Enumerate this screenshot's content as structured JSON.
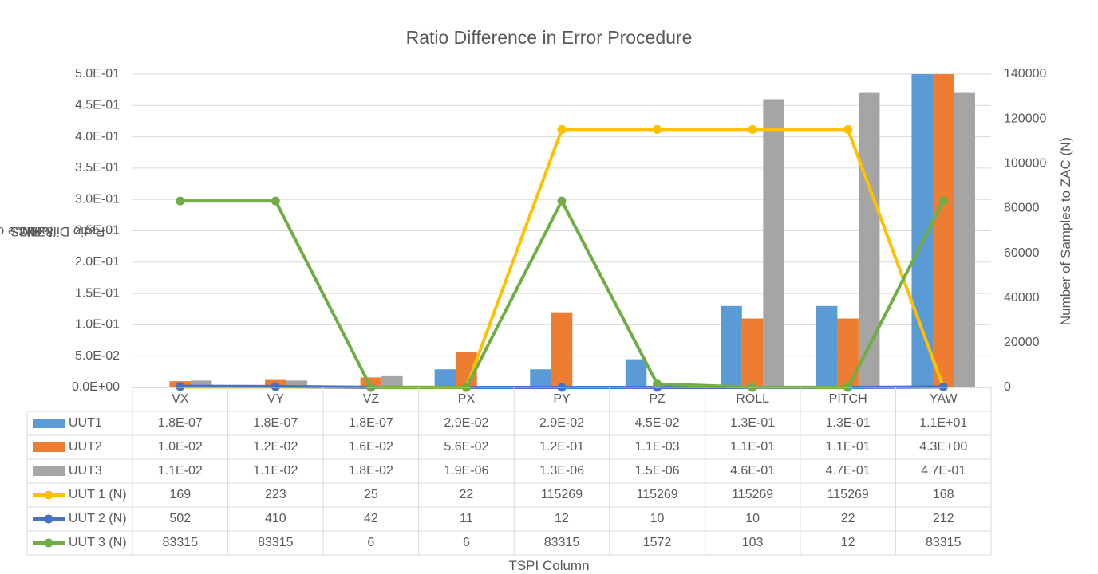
{
  "chart_data": {
    "type": "bar",
    "title": "Ratio Difference in Error Procedure",
    "xlabel": "TSPI Column",
    "ylabel_parts": [
      "Ratio Difference of RMS",
      "All",
      " & RMS",
      "ZAC"
    ],
    "y2label": "Number of Samples to ZAC (N)",
    "categories": [
      "VX",
      "VY",
      "VZ",
      "PX",
      "PY",
      "PZ",
      "ROLL",
      "PITCH",
      "YAW"
    ],
    "ylim": [
      0,
      0.5
    ],
    "yticks": [
      "0.0E+00",
      "5.0E-02",
      "1.0E-01",
      "1.5E-01",
      "2.0E-01",
      "2.5E-01",
      "3.0E-01",
      "3.5E-01",
      "4.0E-01",
      "4.5E-01",
      "5.0E-01"
    ],
    "y2lim": [
      0,
      140000
    ],
    "y2ticks": [
      "0",
      "20000",
      "40000",
      "60000",
      "80000",
      "100000",
      "120000",
      "140000"
    ],
    "grid": true,
    "legend_placement": "data-table",
    "bar_series": [
      {
        "name": "UUT1",
        "color": "#5B9BD5",
        "values": [
          1.8e-07,
          1.8e-07,
          1.8e-07,
          0.029,
          0.029,
          0.045,
          0.13,
          0.13,
          11
        ],
        "labels": [
          "1.8E-07",
          "1.8E-07",
          "1.8E-07",
          "2.9E-02",
          "2.9E-02",
          "4.5E-02",
          "1.3E-01",
          "1.3E-01",
          "1.1E+01"
        ]
      },
      {
        "name": "UUT2",
        "color": "#ED7D31",
        "values": [
          0.01,
          0.012,
          0.016,
          0.056,
          0.12,
          0.0011,
          0.11,
          0.11,
          4.3
        ],
        "labels": [
          "1.0E-02",
          "1.2E-02",
          "1.6E-02",
          "5.6E-02",
          "1.2E-01",
          "1.1E-03",
          "1.1E-01",
          "1.1E-01",
          "4.3E+00"
        ]
      },
      {
        "name": "UUT3",
        "color": "#A5A5A5",
        "values": [
          0.011,
          0.011,
          0.018,
          1.9e-06,
          1.3e-06,
          1.5e-06,
          0.46,
          0.47,
          0.47
        ],
        "labels": [
          "1.1E-02",
          "1.1E-02",
          "1.8E-02",
          "1.9E-06",
          "1.3E-06",
          "1.5E-06",
          "4.6E-01",
          "4.7E-01",
          "4.7E-01"
        ]
      }
    ],
    "line_series": [
      {
        "name": "UUT 1 (N)",
        "color": "#FFC000",
        "values": [
          169,
          223,
          25,
          22,
          115269,
          115269,
          115269,
          115269,
          168
        ]
      },
      {
        "name": "UUT 2 (N)",
        "color": "#4472C4",
        "values": [
          502,
          410,
          42,
          11,
          12,
          10,
          10,
          22,
          212
        ]
      },
      {
        "name": "UUT 3 (N)",
        "color": "#70AD47",
        "values": [
          83315,
          83315,
          6,
          6,
          83315,
          1572,
          103,
          12,
          83315
        ]
      }
    ]
  }
}
